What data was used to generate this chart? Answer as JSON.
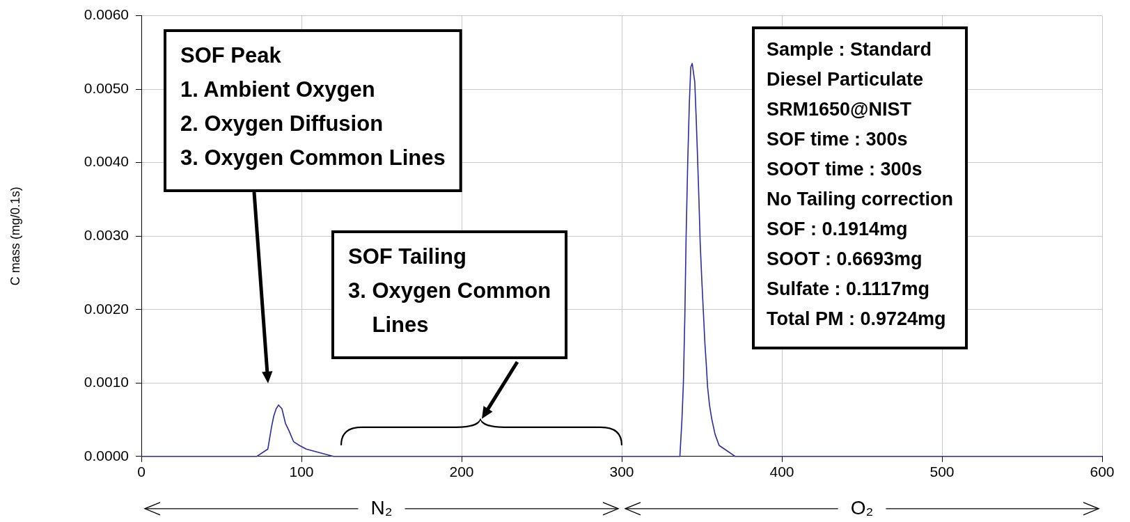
{
  "chart_data": {
    "type": "line",
    "ylabel": "C mass (mg/0.1s)",
    "series": [
      {
        "color": "#2a2aa6",
        "x": [
          0,
          72,
          79,
          81.3,
          82.7,
          84.2,
          85.7,
          87.8,
          90,
          92.2,
          95.1,
          98.7,
          103,
          120,
          135,
          140,
          330,
          336.3,
          337.6,
          338.5,
          339.4,
          340.2,
          341.2,
          342.2,
          343.1,
          344,
          345.6,
          346.5,
          347.3,
          348.2,
          349,
          350,
          350.9,
          351.9,
          352.8,
          353.6,
          354.8,
          356.3,
          358.3,
          360.8,
          364.2,
          370.9,
          420,
          600
        ],
        "values": [
          0,
          0,
          0.0001,
          0.0004,
          0.00055,
          0.00065,
          0.0007,
          0.00065,
          0.00045,
          0.00035,
          0.0002,
          0.00015,
          0.0001,
          0,
          0,
          0,
          0,
          0,
          0.0005,
          0.001,
          0.0019,
          0.003,
          0.004,
          0.0048,
          0.0053,
          0.00535,
          0.0051,
          0.0046,
          0.0041,
          0.0035,
          0.0029,
          0.0024,
          0.002,
          0.00155,
          0.00125,
          0.00095,
          0.0007,
          0.0005,
          0.0003,
          0.00015,
          0.0001,
          0,
          0,
          0
        ]
      }
    ],
    "xlim": [
      0,
      600
    ],
    "xticks": [
      0,
      100,
      200,
      300,
      400,
      500,
      600
    ],
    "ylim": [
      0,
      0.006
    ],
    "yticks": [
      {
        "value": 0,
        "label": "0.0000"
      },
      {
        "value": 0.001,
        "label": "0.0010"
      },
      {
        "value": 0.002,
        "label": "0.0020"
      },
      {
        "value": 0.003,
        "label": "0.0030"
      },
      {
        "value": 0.004,
        "label": "0.0040"
      },
      {
        "value": 0.005,
        "label": "0.0050"
      },
      {
        "value": 0.006,
        "label": "0.0060"
      }
    ],
    "grid": true,
    "marker": "none",
    "line_style": "solid",
    "annotations": [
      "SOF Peak\n1. Ambient Oxygen\n2. Oxygen Diffusion\n3. Oxygen Common Lines",
      "SOF Tailing\n3. Oxygen Common\n    Lines",
      "Sample : Standard\nDiesel Particulate\nSRM1650@NIST\nSOF time : 300s\nSOOT time : 300s\nNo Tailing correction\nSOF : 0.1914mg\nSOOT : 0.6693mg\nSulfate : 0.1117mg\nTotal PM : 0.9724mg",
      "N₂",
      "O₂"
    ]
  }
}
